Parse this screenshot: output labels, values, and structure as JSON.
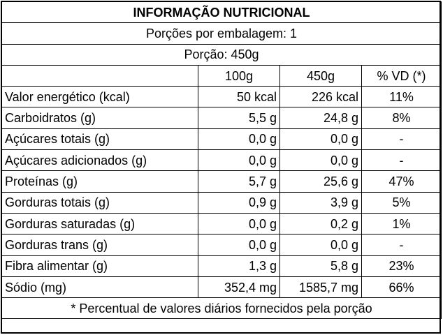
{
  "table": {
    "title": "INFORMAÇÃO NUTRICIONAL",
    "servings": "Porções por embalagem: 1",
    "portion": "Porção: 450g",
    "columns": [
      "100g",
      "450g",
      "% VD (*)"
    ],
    "rows": [
      {
        "label": "Valor energético (kcal)",
        "v100": "50 kcal",
        "v450": "226 kcal",
        "vd": "11%",
        "indent": false
      },
      {
        "label": "Carboidratos (g)",
        "v100": "5,5 g",
        "v450": "24,8 g",
        "vd": "8%",
        "indent": false
      },
      {
        "label": "Açúcares totais (g)",
        "v100": "0,0 g",
        "v450": "0,0 g",
        "vd": "-",
        "indent": true
      },
      {
        "label": "Açúcares adicionados (g)",
        "v100": "0,0 g",
        "v450": "0,0 g",
        "vd": "-",
        "indent": true
      },
      {
        "label": "Proteínas (g)",
        "v100": "5,7 g",
        "v450": "25,6 g",
        "vd": "47%",
        "indent": false
      },
      {
        "label": "Gorduras totais (g)",
        "v100": "0,9 g",
        "v450": "3,9 g",
        "vd": "5%",
        "indent": false
      },
      {
        "label": "Gorduras saturadas (g)",
        "v100": "0,0 g",
        "v450": "0,2 g",
        "vd": "1%",
        "indent": true
      },
      {
        "label": "Gorduras trans (g)",
        "v100": "0,0 g",
        "v450": "0,0 g",
        "vd": "-",
        "indent": true
      },
      {
        "label": "Fibra alimentar (g)",
        "v100": "1,3 g",
        "v450": "5,8 g",
        "vd": "23%",
        "indent": false
      },
      {
        "label": "Sódio (mg)",
        "v100": "352,4 mg",
        "v450": "1585,7 mg",
        "vd": "66%",
        "indent": false
      }
    ],
    "footnote": "* Percentual de valores diários fornecidos pela porção"
  }
}
